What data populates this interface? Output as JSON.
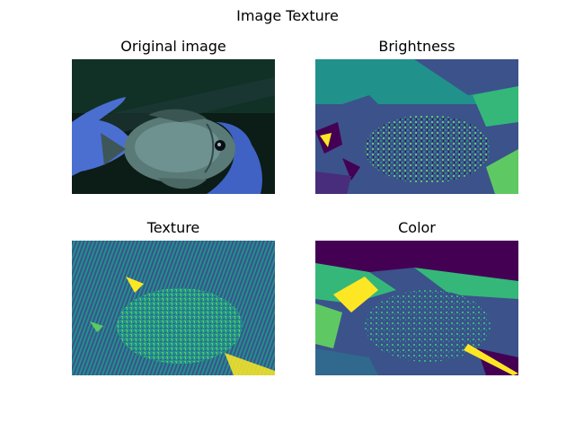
{
  "figure": {
    "title": "Image Texture"
  },
  "panels": [
    {
      "title": "Original image",
      "colormap": "rgb-photo",
      "palette": [
        "#0b2a22",
        "#2a3f86",
        "#4a6fd1",
        "#7fa6a2",
        "#0c1b14"
      ]
    },
    {
      "title": "Brightness",
      "colormap": "viridis",
      "palette": [
        "#440154",
        "#3b528b",
        "#21918c",
        "#5ec962",
        "#fde725"
      ]
    },
    {
      "title": "Texture",
      "colormap": "viridis",
      "palette": [
        "#440154",
        "#3b528b",
        "#21918c",
        "#5ec962",
        "#fde725"
      ]
    },
    {
      "title": "Color",
      "colormap": "viridis",
      "palette": [
        "#440154",
        "#3b528b",
        "#21918c",
        "#5ec962",
        "#fde725"
      ]
    }
  ]
}
